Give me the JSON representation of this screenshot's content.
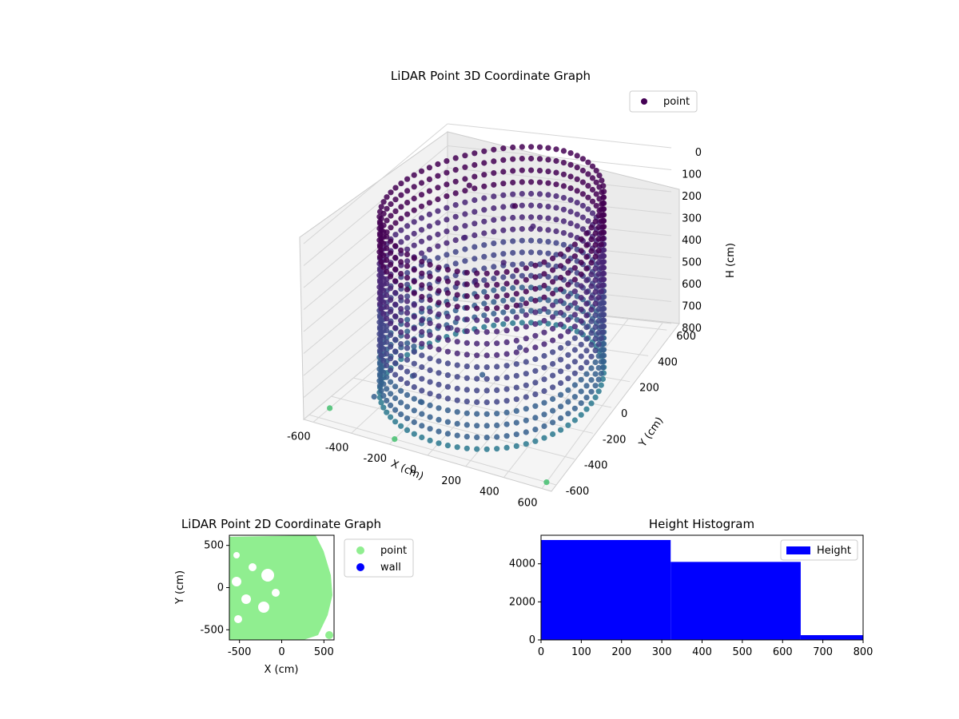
{
  "chart_data": [
    {
      "type": "scatter3d",
      "title": "LiDAR Point 3D Coordinate Graph",
      "xlabel": "X (cm)",
      "ylabel": "Y (cm)",
      "zlabel": "H (cm)",
      "xlim": [
        -650,
        650
      ],
      "ylim": [
        -650,
        650
      ],
      "zlim": [
        800,
        0
      ],
      "x_ticks": [
        "-600",
        "-400",
        "-200",
        "0",
        "200",
        "400",
        "600"
      ],
      "y_ticks": [
        "-600",
        "-400",
        "-200",
        "0",
        "200",
        "400",
        "600"
      ],
      "z_ticks": [
        "0",
        "100",
        "200",
        "300",
        "400",
        "500",
        "600",
        "700",
        "800"
      ],
      "grid": true,
      "colormap": "viridis",
      "legend": {
        "location": "top-right",
        "entries": [
          {
            "label": "point",
            "color": "#440154"
          }
        ]
      },
      "series": [
        {
          "name": "point",
          "description_shape": "cylindrical wall of points, radius ~600 cm, heights 0-800 cm",
          "ring": {
            "radius": 600,
            "h_min": 0,
            "h_max": 800,
            "angle_samples": 72,
            "height_samples": 16
          },
          "scattered": [
            {
              "x": -500,
              "y": 200,
              "h": 400
            },
            {
              "x": -420,
              "y": 50,
              "h": 600
            },
            {
              "x": -380,
              "y": -100,
              "h": 650
            },
            {
              "x": -300,
              "y": -250,
              "h": 700
            },
            {
              "x": -200,
              "y": -350,
              "h": 750
            },
            {
              "x": -150,
              "y": -150,
              "h": 500
            },
            {
              "x": -100,
              "y": 0,
              "h": 350
            },
            {
              "x": 0,
              "y": 100,
              "h": 300
            },
            {
              "x": 50,
              "y": -200,
              "h": 650
            },
            {
              "x": 120,
              "y": 50,
              "h": 450
            },
            {
              "x": -250,
              "y": 150,
              "h": 250
            },
            {
              "x": -50,
              "y": 300,
              "h": 150
            },
            {
              "x": 80,
              "y": 250,
              "h": 200
            },
            {
              "x": -320,
              "y": 320,
              "h": 100
            },
            {
              "x": 200,
              "y": -100,
              "h": 550
            },
            {
              "x": -450,
              "y": -350,
              "h": 780
            },
            {
              "x": -600,
              "y": -500,
              "h": 800
            },
            {
              "x": 600,
              "y": -600,
              "h": 800
            },
            {
              "x": -200,
              "y": -600,
              "h": 800
            },
            {
              "x": -650,
              "y": 300,
              "h": 600
            }
          ]
        }
      ]
    },
    {
      "type": "scatter",
      "title": "LiDAR Point 2D Coordinate Graph",
      "xlabel": "X (cm)",
      "ylabel": "Y (cm)",
      "xlim": [
        -620,
        620
      ],
      "ylim": [
        -620,
        620
      ],
      "x_ticks": [
        "-500",
        "0",
        "500"
      ],
      "y_ticks": [
        "500",
        "0",
        "-500"
      ],
      "legend": {
        "location": "right-outside",
        "entries": [
          {
            "label": "point",
            "color": "#90ee90"
          },
          {
            "label": "wall",
            "color": "#0000ff"
          }
        ]
      },
      "point_color": "#90ee90",
      "wall_color": "#0000ff"
    },
    {
      "type": "bar",
      "title": "Height Histogram",
      "xlim": [
        0,
        800
      ],
      "ylim": [
        0,
        5500
      ],
      "x_ticks": [
        "0",
        "100",
        "200",
        "300",
        "400",
        "500",
        "600",
        "700",
        "800"
      ],
      "y_ticks": [
        "0",
        "2000",
        "4000"
      ],
      "legend": {
        "location": "top-right",
        "entries": [
          {
            "label": "Height",
            "color": "#0000ff"
          }
        ]
      },
      "bins": [
        {
          "start": 0,
          "end": 322,
          "count": 5250
        },
        {
          "start": 322,
          "end": 645,
          "count": 4100
        },
        {
          "start": 645,
          "end": 800,
          "count": 250
        }
      ],
      "color": "#0000ff"
    }
  ]
}
